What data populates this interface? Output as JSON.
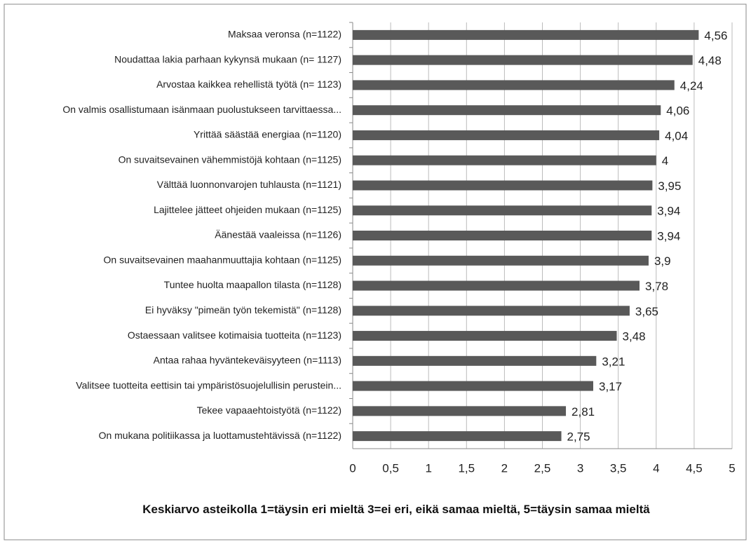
{
  "chart_data": {
    "type": "bar",
    "orientation": "horizontal",
    "categories": [
      "Maksaa veronsa (n=1122)",
      "Noudattaa lakia parhaan kykynsä mukaan (n= 1127)",
      "Arvostaa kaikkea rehellistä työtä (n= 1123)",
      "On valmis osallistumaan isänmaan puolustukseen tarvittaessa...",
      "Yrittää säästää energiaa (n=1120)",
      "On suvaitsevainen vähemmistöjä kohtaan (n=1125)",
      "Välttää luonnonvarojen tuhlausta (n=1121)",
      "Lajittelee jätteet ohjeiden mukaan (n=1125)",
      "Äänestää vaaleissa (n=1126)",
      "On suvaitsevainen maahanmuuttajia kohtaan (n=1125)",
      "Tuntee huolta maapallon tilasta (n=1128)",
      "Ei hyväksy \"pimeän työn tekemistä\" (n=1128)",
      "Ostaessaan valitsee kotimaisia tuotteita (n=1123)",
      "Antaa rahaa hyväntekeväisyyteen (n=1113)",
      "Valitsee tuotteita eettisin tai ympäristösuojelullisin perustein...",
      "Tekee vapaaehtoistyötä (n=1122)",
      "On mukana politiikassa ja luottamustehtävissä (n=1122)"
    ],
    "values": [
      4.56,
      4.48,
      4.24,
      4.06,
      4.04,
      4,
      3.95,
      3.94,
      3.94,
      3.9,
      3.78,
      3.65,
      3.48,
      3.21,
      3.17,
      2.81,
      2.75
    ],
    "value_labels": [
      "4,56",
      "4,48",
      "4,24",
      "4,06",
      "4,04",
      "4",
      "3,95",
      "3,94",
      "3,94",
      "3,9",
      "3,78",
      "3,65",
      "3,48",
      "3,21",
      "3,17",
      "2,81",
      "2,75"
    ],
    "color": "#595959",
    "xlim": [
      0,
      5
    ],
    "xticks": [
      0,
      {
        "value": 0.5,
        "label": "0,5"
      },
      1,
      {
        "value": 1.5,
        "label": "1,5"
      },
      2,
      {
        "value": 2.5,
        "label": "2,5"
      },
      3,
      {
        "value": 3.5,
        "label": "3,5"
      },
      4,
      {
        "value": 4.5,
        "label": "4,5"
      },
      5
    ],
    "grid": true,
    "x_label": "Keskiarvo asteikolla 1=täysin eri mieltä 3=ei eri, eikä samaa mieltä, 5=täysin samaa mieltä"
  }
}
